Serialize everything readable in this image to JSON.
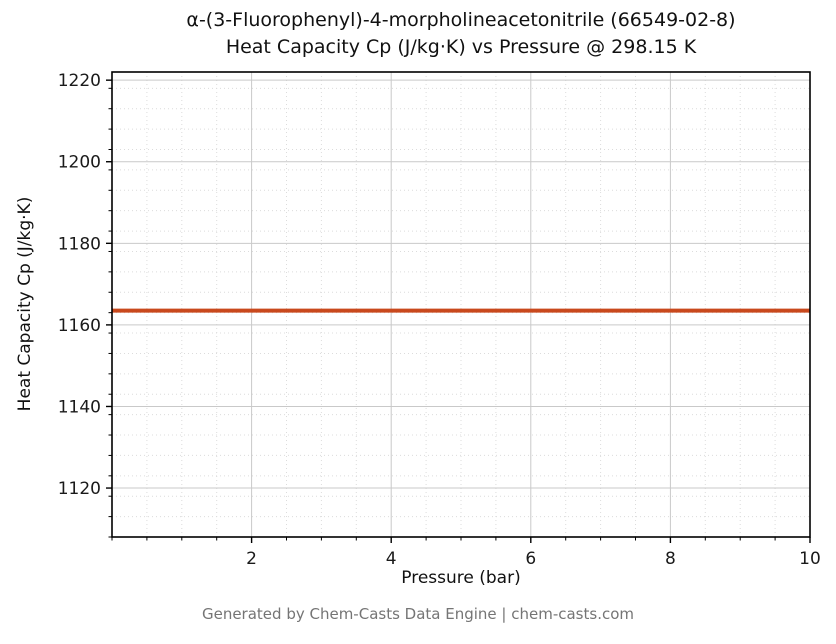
{
  "chart_data": {
    "type": "line",
    "title_line1": "α-(3-Fluorophenyl)-4-morpholineacetonitrile (66549-02-8)",
    "title_line2": "Heat Capacity Cp (J/kg·K) vs Pressure @ 298.15 K",
    "xlabel": "Pressure (bar)",
    "ylabel": "Heat Capacity Cp (J/kg·K)",
    "xlim": [
      0,
      10
    ],
    "ylim": [
      1108,
      1222
    ],
    "x_ticks": [
      2,
      4,
      6,
      8,
      10
    ],
    "y_ticks": [
      1120,
      1140,
      1160,
      1180,
      1200,
      1220
    ],
    "x_minor_step": 0.5,
    "y_minor_step": 5,
    "grid": true,
    "legend": "none",
    "series": [
      {
        "name": "Heat Capacity Cp",
        "color": "#c9491d",
        "line_width": 4,
        "x": [
          0,
          10
        ],
        "y": [
          1163.5,
          1163.5
        ]
      }
    ],
    "footer": "Generated by Chem-Casts Data Engine | chem-casts.com"
  },
  "style_colors": {
    "major_grid": "#c9c9c9",
    "minor_grid": "#dcdcdc",
    "axis": "#000000",
    "tick_label": "#1a1a1a"
  }
}
